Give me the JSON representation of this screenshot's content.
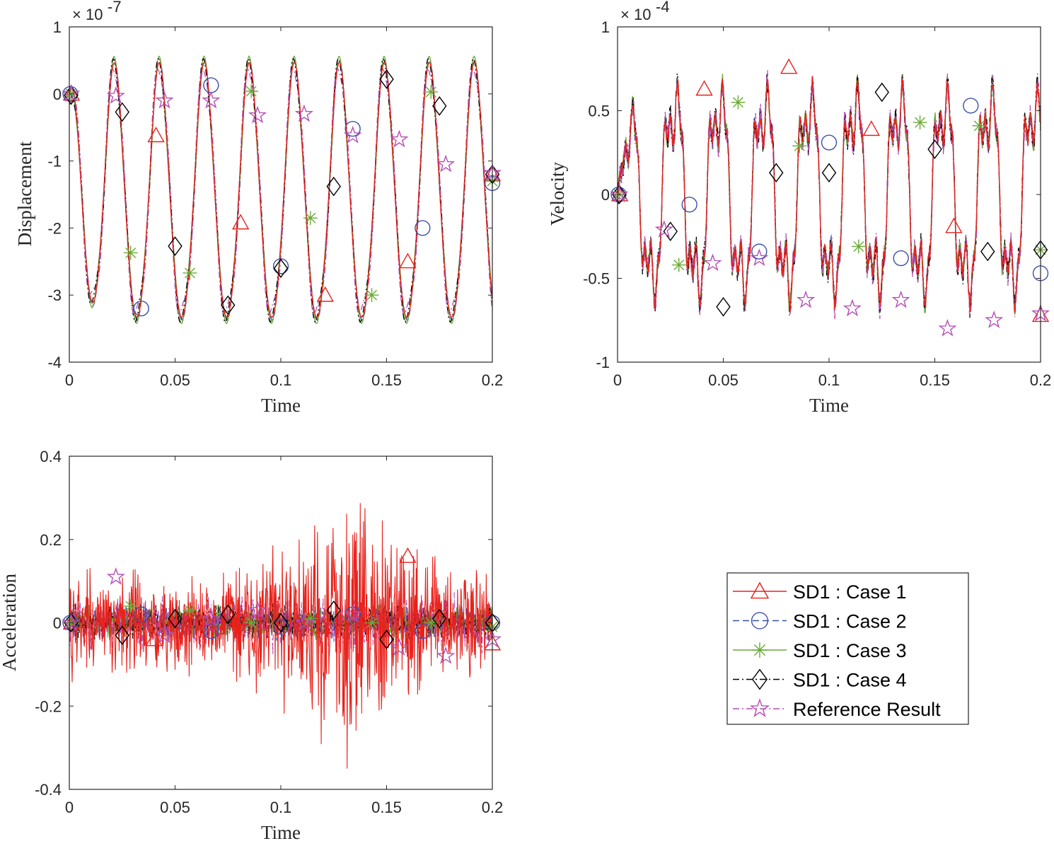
{
  "legend": {
    "entries": [
      {
        "label": "SD1 : Case 1",
        "color": "#e8211b",
        "marker": "triangle",
        "dash": "solid"
      },
      {
        "label": "SD1 : Case 2",
        "color": "#3a4ea8",
        "marker": "circle",
        "dash": "dashed"
      },
      {
        "label": "SD1 : Case 3",
        "color": "#6aaa35",
        "marker": "asterisk",
        "dash": "solid"
      },
      {
        "label": "SD1 : Case 4",
        "color": "#000000",
        "marker": "diamond",
        "dash": "dashdot"
      },
      {
        "label": "Reference Result",
        "color": "#b44fb4",
        "marker": "pentagram",
        "dash": "dashdot"
      }
    ]
  },
  "chart_data": [
    {
      "type": "line",
      "title": "",
      "xlabel": "Time",
      "ylabel": "Displacement",
      "exponent_label": "× 10",
      "exponent_power": "-7",
      "xlim": [
        0,
        0.2
      ],
      "ylim": [
        -4,
        1
      ],
      "xticks": [
        "0",
        "0.05",
        "0.1",
        "0.15",
        "0.2"
      ],
      "xtick_values": [
        0,
        0.05,
        0.1,
        0.15,
        0.2
      ],
      "yticks": [
        "-4",
        "-3",
        "-2",
        "-1",
        "0",
        "1"
      ],
      "ytick_values": [
        -4,
        -3,
        -2,
        -1,
        0,
        1
      ],
      "grid": false,
      "signal": {
        "period": 0.02128,
        "center": -1.55,
        "amplitude": 1.9,
        "start_decay": 0.011
      },
      "markers": {
        "SD1 : Case 1": [
          [
            0.001,
            0
          ],
          [
            0.041,
            -0.62
          ],
          [
            0.081,
            -1.92
          ],
          [
            0.121,
            -3.0
          ],
          [
            0.16,
            -2.5
          ],
          [
            0.2,
            -1.2
          ]
        ],
        "SD1 : Case 2": [
          [
            0.0005,
            0.0
          ],
          [
            0.034,
            -3.2
          ],
          [
            0.067,
            0.13
          ],
          [
            0.1,
            -2.57
          ],
          [
            0.134,
            -0.52
          ],
          [
            0.167,
            -2.0
          ],
          [
            0.2,
            -1.33
          ]
        ],
        "SD1 : Case 3": [
          [
            0.0008,
            0
          ],
          [
            0.029,
            -2.37
          ],
          [
            0.057,
            -2.67
          ],
          [
            0.086,
            0.04
          ],
          [
            0.114,
            -1.85
          ],
          [
            0.143,
            -3.0
          ],
          [
            0.171,
            0.03
          ],
          [
            0.2,
            -1.3
          ]
        ],
        "SD1 : Case 4": [
          [
            0.0008,
            -0.02
          ],
          [
            0.025,
            -0.27
          ],
          [
            0.05,
            -2.27
          ],
          [
            0.075,
            -3.15
          ],
          [
            0.1,
            -2.6
          ],
          [
            0.125,
            -1.38
          ],
          [
            0.15,
            0.22
          ],
          [
            0.175,
            -0.18
          ],
          [
            0.2,
            -1.2
          ]
        ],
        "Reference Result": [
          [
            0.0008,
            0
          ],
          [
            0.022,
            -0.03
          ],
          [
            0.045,
            -0.1
          ],
          [
            0.067,
            -0.1
          ],
          [
            0.089,
            -0.32
          ],
          [
            0.111,
            -0.3
          ],
          [
            0.134,
            -0.62
          ],
          [
            0.156,
            -0.68
          ],
          [
            0.178,
            -1.05
          ],
          [
            0.2,
            -1.18
          ]
        ]
      }
    },
    {
      "type": "line",
      "title": "",
      "xlabel": "Time",
      "ylabel": "Velocity",
      "exponent_label": "× 10",
      "exponent_power": "-4",
      "xlim": [
        0,
        0.2
      ],
      "ylim": [
        -1,
        1
      ],
      "xticks": [
        "0",
        "0.05",
        "0.1",
        "0.15",
        "0.2"
      ],
      "xtick_values": [
        0,
        0.05,
        0.1,
        0.15,
        0.2
      ],
      "yticks": [
        "-1",
        "-0.5",
        "0",
        "0.5",
        "1"
      ],
      "ytick_values": [
        -1,
        -0.5,
        0,
        0.5,
        1
      ],
      "grid": false,
      "markers": {
        "SD1 : Case 1": [
          [
            0.001,
            0
          ],
          [
            0.041,
            0.63
          ],
          [
            0.081,
            0.76
          ],
          [
            0.12,
            0.39
          ],
          [
            0.159,
            -0.19
          ],
          [
            0.2,
            -0.72
          ]
        ],
        "SD1 : Case 2": [
          [
            0.0005,
            0.0
          ],
          [
            0.034,
            -0.06
          ],
          [
            0.067,
            -0.34
          ],
          [
            0.1,
            0.31
          ],
          [
            0.134,
            -0.38
          ],
          [
            0.167,
            0.53
          ],
          [
            0.2,
            -0.47
          ]
        ],
        "SD1 : Case 3": [
          [
            0.0008,
            0
          ],
          [
            0.029,
            -0.42
          ],
          [
            0.057,
            0.55
          ],
          [
            0.086,
            0.29
          ],
          [
            0.114,
            -0.31
          ],
          [
            0.143,
            0.43
          ],
          [
            0.171,
            0.41
          ],
          [
            0.2,
            -0.33
          ]
        ],
        "SD1 : Case 4": [
          [
            0.0008,
            0
          ],
          [
            0.025,
            -0.22
          ],
          [
            0.05,
            -0.67
          ],
          [
            0.075,
            0.13
          ],
          [
            0.1,
            0.13
          ],
          [
            0.125,
            0.61
          ],
          [
            0.15,
            0.27
          ],
          [
            0.175,
            -0.34
          ],
          [
            0.2,
            -0.33
          ]
        ],
        "Reference Result": [
          [
            0.0008,
            0
          ],
          [
            0.022,
            -0.21
          ],
          [
            0.045,
            -0.41
          ],
          [
            0.067,
            -0.38
          ],
          [
            0.089,
            -0.63
          ],
          [
            0.111,
            -0.68
          ],
          [
            0.134,
            -0.63
          ],
          [
            0.156,
            -0.8
          ],
          [
            0.178,
            -0.75
          ],
          [
            0.2,
            -0.71
          ]
        ]
      }
    },
    {
      "type": "line",
      "title": "",
      "xlabel": "Time",
      "ylabel": "Acceleration",
      "xlim": [
        0,
        0.2
      ],
      "ylim": [
        -0.4,
        0.4
      ],
      "xticks": [
        "0",
        "0.05",
        "0.1",
        "0.15",
        "0.2"
      ],
      "xtick_values": [
        0,
        0.05,
        0.1,
        0.15,
        0.2
      ],
      "yticks": [
        "-0.4",
        "-0.2",
        "0",
        "0.2",
        "0.4"
      ],
      "ytick_values": [
        -0.4,
        -0.2,
        0,
        0.2,
        0.4
      ],
      "grid": false,
      "markers": {
        "SD1 : Case 1": [
          [
            0.001,
            0
          ],
          [
            0.04,
            -0.04
          ],
          [
            0.08,
            0.01
          ],
          [
            0.12,
            -0.01
          ],
          [
            0.16,
            0.16
          ],
          [
            0.2,
            -0.05
          ]
        ],
        "SD1 : Case 2": [
          [
            0.0005,
            0.0
          ],
          [
            0.034,
            0.02
          ],
          [
            0.067,
            -0.02
          ],
          [
            0.1,
            -0.01
          ],
          [
            0.134,
            0.02
          ],
          [
            0.167,
            -0.02
          ],
          [
            0.2,
            0.0
          ]
        ],
        "SD1 : Case 3": [
          [
            0.0008,
            0
          ],
          [
            0.029,
            0.04
          ],
          [
            0.057,
            0.03
          ],
          [
            0.086,
            0.0
          ],
          [
            0.114,
            0.01
          ],
          [
            0.143,
            0.0
          ],
          [
            0.171,
            0.0
          ],
          [
            0.2,
            -0.01
          ]
        ],
        "SD1 : Case 4": [
          [
            0.0008,
            0
          ],
          [
            0.025,
            -0.03
          ],
          [
            0.05,
            0.01
          ],
          [
            0.075,
            0.02
          ],
          [
            0.1,
            0.0
          ],
          [
            0.125,
            0.03
          ],
          [
            0.15,
            -0.04
          ],
          [
            0.175,
            0.01
          ],
          [
            0.2,
            0.0
          ]
        ],
        "Reference Result": [
          [
            0.0008,
            0
          ],
          [
            0.022,
            0.11
          ],
          [
            0.045,
            -0.03
          ],
          [
            0.067,
            0.01
          ],
          [
            0.089,
            0.03
          ],
          [
            0.111,
            0.0
          ],
          [
            0.134,
            0.02
          ],
          [
            0.156,
            -0.06
          ],
          [
            0.178,
            -0.08
          ],
          [
            0.2,
            -0.04
          ]
        ]
      }
    }
  ]
}
